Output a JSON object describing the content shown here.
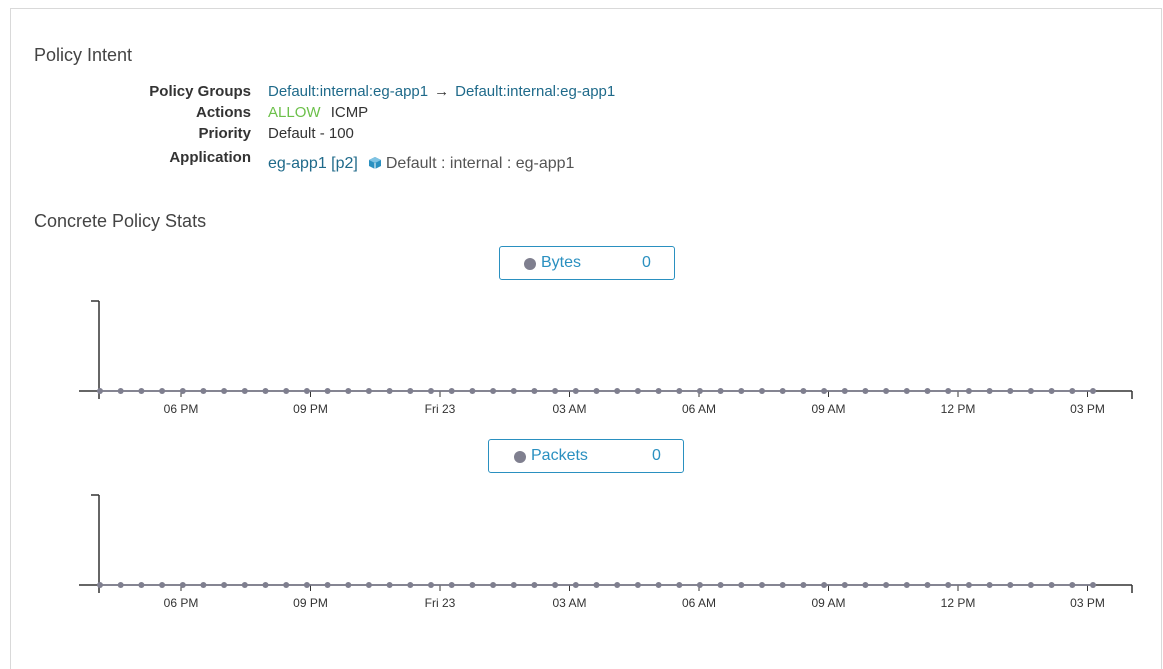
{
  "policy_intent": {
    "title": "Policy Intent",
    "rows": {
      "policy_groups": {
        "label": "Policy Groups",
        "source": "Default:internal:eg-app1",
        "arrow": "→",
        "destination": "Default:internal:eg-app1"
      },
      "actions": {
        "label": "Actions",
        "action": "ALLOW",
        "protocol": "ICMP"
      },
      "priority": {
        "label": "Priority",
        "value": "Default - 100"
      },
      "application": {
        "label": "Application",
        "app": "eg-app1 [p2]",
        "icon": "cube-icon",
        "path": "Default : internal : eg-app1"
      }
    }
  },
  "stats": {
    "title": "Concrete Policy Stats",
    "bytes_legend": {
      "name": "Bytes",
      "value": "0"
    },
    "packets_legend": {
      "name": "Packets",
      "value": "0"
    }
  },
  "colors": {
    "link": "#1f6a8a",
    "allow": "#6cc04a",
    "legend_accent": "#2a90c0",
    "series": "#7f7f8f"
  },
  "chart_data": [
    {
      "type": "line",
      "series": [
        {
          "name": "Bytes",
          "values": [
            0,
            0,
            0,
            0,
            0,
            0,
            0,
            0,
            0,
            0,
            0,
            0,
            0,
            0,
            0,
            0,
            0,
            0,
            0,
            0,
            0,
            0,
            0,
            0,
            0,
            0,
            0,
            0,
            0,
            0,
            0,
            0,
            0,
            0,
            0,
            0,
            0,
            0,
            0,
            0,
            0,
            0,
            0,
            0,
            0,
            0,
            0,
            0,
            0
          ]
        }
      ],
      "x_ticks": [
        "06 PM",
        "09 PM",
        "Fri 23",
        "03 AM",
        "06 AM",
        "09 AM",
        "12 PM",
        "03 PM"
      ],
      "ylim": [
        0,
        1
      ],
      "grid": false,
      "legend": "top-center"
    },
    {
      "type": "line",
      "series": [
        {
          "name": "Packets",
          "values": [
            0,
            0,
            0,
            0,
            0,
            0,
            0,
            0,
            0,
            0,
            0,
            0,
            0,
            0,
            0,
            0,
            0,
            0,
            0,
            0,
            0,
            0,
            0,
            0,
            0,
            0,
            0,
            0,
            0,
            0,
            0,
            0,
            0,
            0,
            0,
            0,
            0,
            0,
            0,
            0,
            0,
            0,
            0,
            0,
            0,
            0,
            0,
            0,
            0
          ]
        }
      ],
      "x_ticks": [
        "06 PM",
        "09 PM",
        "Fri 23",
        "03 AM",
        "06 AM",
        "09 AM",
        "12 PM",
        "03 PM"
      ],
      "ylim": [
        0,
        1
      ],
      "grid": false,
      "legend": "top-center"
    }
  ]
}
